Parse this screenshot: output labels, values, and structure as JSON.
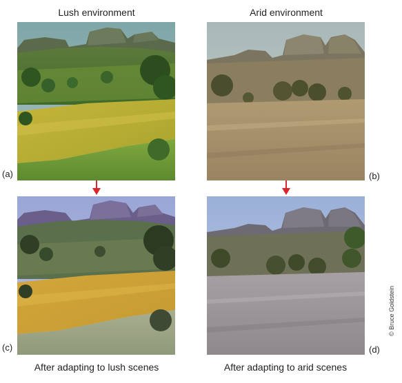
{
  "captions": {
    "top_left": "Lush environment",
    "top_right": "Arid environment",
    "bottom_left": "After adapting to lush scenes",
    "bottom_right": "After adapting to arid scenes"
  },
  "panel_labels": {
    "a": "(a)",
    "b": "(b)",
    "c": "(c)",
    "d": "(d)"
  },
  "credit": "© Bruce Goldstein",
  "colors": {
    "arrow": "#d9252b",
    "text": "#222222"
  },
  "icons": {
    "arrow_left": "down-arrow-icon",
    "arrow_right": "down-arrow-icon"
  }
}
